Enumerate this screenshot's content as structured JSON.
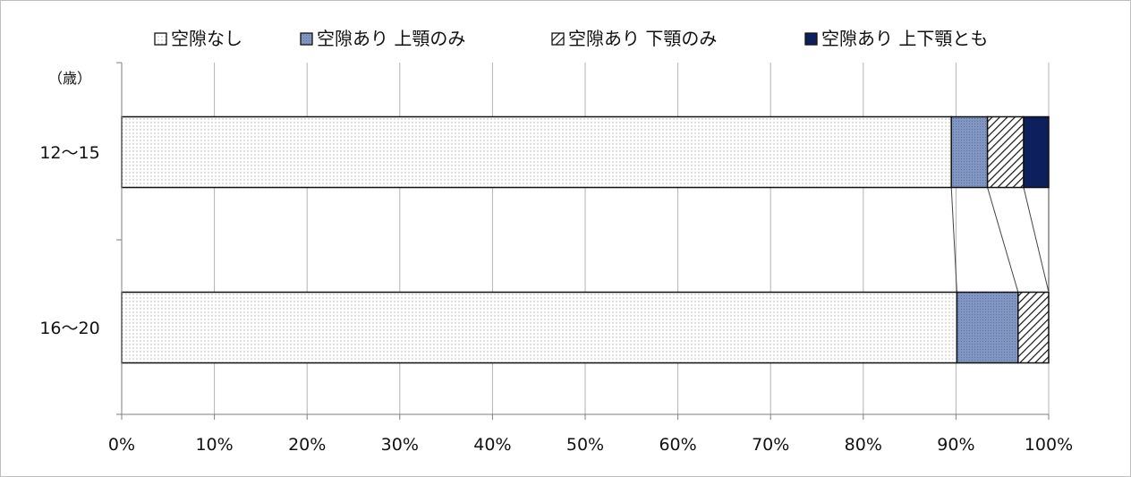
{
  "chart_data": {
    "type": "bar",
    "orientation": "horizontal",
    "stacked": "percent",
    "ylabel_unit": "（歳）",
    "categories": [
      "12～15",
      "16～20"
    ],
    "series": [
      {
        "name": "空隙なし",
        "values": [
          89.5,
          90.1
        ],
        "color": "#ffffff",
        "pattern": "dots"
      },
      {
        "name": "空隙あり 上顎のみ",
        "values": [
          3.9,
          6.6
        ],
        "color": "#8096c0",
        "pattern": "fine-grid"
      },
      {
        "name": "空隙あり 下顎のみ",
        "values": [
          3.9,
          3.3
        ],
        "color": "#ffffff",
        "pattern": "diagonal"
      },
      {
        "name": "空隙あり 上下顎とも",
        "values": [
          2.7,
          0.0
        ],
        "color": "#0d1f5c",
        "pattern": "solid"
      }
    ],
    "xlim": [
      0,
      100
    ],
    "xticks": [
      "0%",
      "10%",
      "20%",
      "30%",
      "40%",
      "50%",
      "60%",
      "70%",
      "80%",
      "90%",
      "100%"
    ],
    "grid": true,
    "legend_position": "top",
    "series_connector_lines": true
  }
}
